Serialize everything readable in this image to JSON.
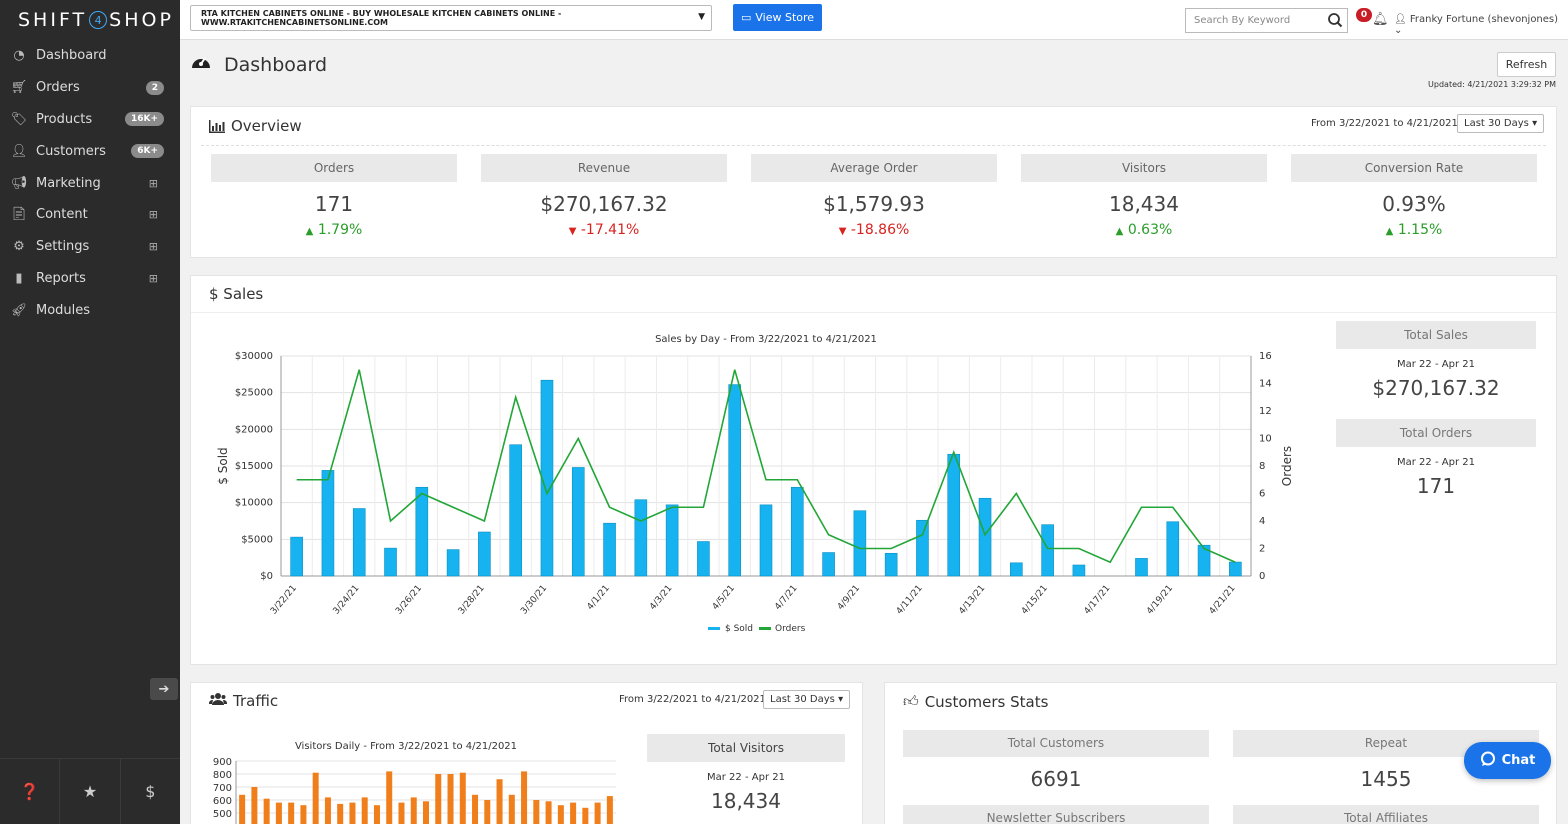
{
  "brand": {
    "logo_left": "SHIFT",
    "logo_num": "4",
    "logo_right": "SHOP"
  },
  "sidebar": {
    "items": [
      {
        "label": "Dashboard",
        "icon": "dashboard-icon"
      },
      {
        "label": "Orders",
        "icon": "cart-icon",
        "badge": "2"
      },
      {
        "label": "Products",
        "icon": "tags-icon",
        "badge": "16K+"
      },
      {
        "label": "Customers",
        "icon": "user-icon",
        "badge": "6K+"
      },
      {
        "label": "Marketing",
        "icon": "bullhorn-icon",
        "expand": "⊞"
      },
      {
        "label": "Content",
        "icon": "file-icon",
        "expand": "⊞"
      },
      {
        "label": "Settings",
        "icon": "cogs-icon",
        "expand": "⊞"
      },
      {
        "label": "Reports",
        "icon": "bar-chart-icon",
        "expand": "⊞"
      },
      {
        "label": "Modules",
        "icon": "rocket-icon"
      }
    ]
  },
  "topbar": {
    "store": "RTA KITCHEN CABINETS ONLINE - BUY WHOLESALE KITCHEN CABINETS ONLINE - WWW.RTAKITCHENCABINETSONLINE.COM",
    "view_store": "View Store",
    "search_placeholder": "Search By Keyword",
    "notifications": "0",
    "user": "Franky Fortune (shevonjones)"
  },
  "header": {
    "title": "Dashboard",
    "refresh": "Refresh",
    "updated": "Updated: 4/21/2021 3:29:32 PM"
  },
  "overview": {
    "title": "Overview",
    "range": "From 3/22/2021 to 4/21/2021",
    "period": "Last 30 Days",
    "kpis": [
      {
        "label": "Orders",
        "value": "171",
        "change": "1.79%",
        "dir": "up"
      },
      {
        "label": "Revenue",
        "value": "$270,167.32",
        "change": "-17.41%",
        "dir": "down"
      },
      {
        "label": "Average Order",
        "value": "$1,579.93",
        "change": "-18.86%",
        "dir": "down"
      },
      {
        "label": "Visitors",
        "value": "18,434",
        "change": "0.63%",
        "dir": "up"
      },
      {
        "label": "Conversion Rate",
        "value": "0.93%",
        "change": "1.15%",
        "dir": "up"
      }
    ]
  },
  "sales": {
    "title": "$ Sales",
    "total_sales_label": "Total Sales",
    "total_sales_range": "Mar 22 - Apr 21",
    "total_sales_value": "$270,167.32",
    "total_orders_label": "Total Orders",
    "total_orders_range": "Mar 22 - Apr 21",
    "total_orders_value": "171"
  },
  "traffic": {
    "title": "Traffic",
    "range": "From 3/22/2021 to 4/21/2021",
    "period": "Last 30 Days",
    "total_visitors_label": "Total Visitors",
    "total_visitors_range": "Mar 22 - Apr 21",
    "total_visitors_value": "18,434"
  },
  "customer_stats": {
    "title": "Customers Stats",
    "cards": [
      {
        "label": "Total Customers",
        "value": "6691"
      },
      {
        "label": "Repeat",
        "value": "1455"
      },
      {
        "label": "Newsletter Subscribers",
        "value": ""
      },
      {
        "label": "Total Affiliates",
        "value": ""
      }
    ]
  },
  "chat": {
    "label": "Chat"
  },
  "colors": {
    "bar": "#16b3f0",
    "line": "#22a637",
    "traffic_bar": "#f07e1a",
    "accent": "#1a73e8"
  },
  "chart_data": [
    {
      "type": "bar",
      "title": "Sales by Day - From 3/22/2021 to 4/21/2021",
      "ylabel": "$ Sold",
      "y2label": "Orders",
      "ylim": [
        0,
        30000
      ],
      "y2lim": [
        0,
        16
      ],
      "x": [
        "3/22/21",
        "3/23/21",
        "3/24/21",
        "3/25/21",
        "3/26/21",
        "3/27/21",
        "3/28/21",
        "3/29/21",
        "3/30/21",
        "3/31/21",
        "4/1/21",
        "4/2/21",
        "4/3/21",
        "4/4/21",
        "4/5/21",
        "4/6/21",
        "4/7/21",
        "4/8/21",
        "4/9/21",
        "4/10/21",
        "4/11/21",
        "4/12/21",
        "4/13/21",
        "4/14/21",
        "4/15/21",
        "4/16/21",
        "4/17/21",
        "4/18/21",
        "4/19/21",
        "4/20/21",
        "4/21/21"
      ],
      "xticks": [
        "3/22/21",
        "3/24/21",
        "3/26/21",
        "3/28/21",
        "3/30/21",
        "4/1/21",
        "4/3/21",
        "4/5/21",
        "4/7/21",
        "4/9/21",
        "4/11/21",
        "4/13/21",
        "4/15/21",
        "4/17/21",
        "4/19/21",
        "4/21/21"
      ],
      "yticks": [
        "$0",
        "$5000",
        "$10000",
        "$15000",
        "$20000",
        "$25000",
        "$30000"
      ],
      "y2ticks": [
        "0",
        "2",
        "4",
        "6",
        "8",
        "10",
        "12",
        "14",
        "16"
      ],
      "series": [
        {
          "name": "$ Sold",
          "type": "bar",
          "values": [
            5300,
            14400,
            9200,
            3800,
            12100,
            3600,
            6000,
            17900,
            26700,
            14800,
            7200,
            10400,
            9700,
            4700,
            26100,
            9700,
            12100,
            3200,
            8900,
            3100,
            7600,
            16600,
            10600,
            1800,
            7000,
            1500,
            0,
            2400,
            7400,
            4200,
            1900
          ]
        },
        {
          "name": "Orders",
          "type": "line",
          "values": [
            7,
            7,
            15,
            4,
            6,
            5,
            4,
            13,
            6,
            10,
            5,
            4,
            5,
            5,
            15,
            7,
            7,
            3,
            2,
            2,
            3,
            9,
            3,
            6,
            2,
            2,
            1,
            5,
            5,
            2,
            1
          ]
        }
      ],
      "legend": "bottom"
    },
    {
      "type": "bar",
      "title": "Visitors Daily - From 3/22/2021 to 4/21/2021",
      "yticks": [
        "500",
        "600",
        "700",
        "800",
        "900"
      ],
      "ylim": [
        400,
        900
      ],
      "series": [
        {
          "name": "Visitors",
          "values": [
            640,
            700,
            610,
            580,
            580,
            560,
            810,
            620,
            570,
            580,
            620,
            560,
            820,
            580,
            620,
            590,
            800,
            800,
            810,
            640,
            600,
            760,
            640,
            820,
            600,
            590,
            560,
            580,
            540,
            580,
            630
          ]
        }
      ]
    }
  ]
}
